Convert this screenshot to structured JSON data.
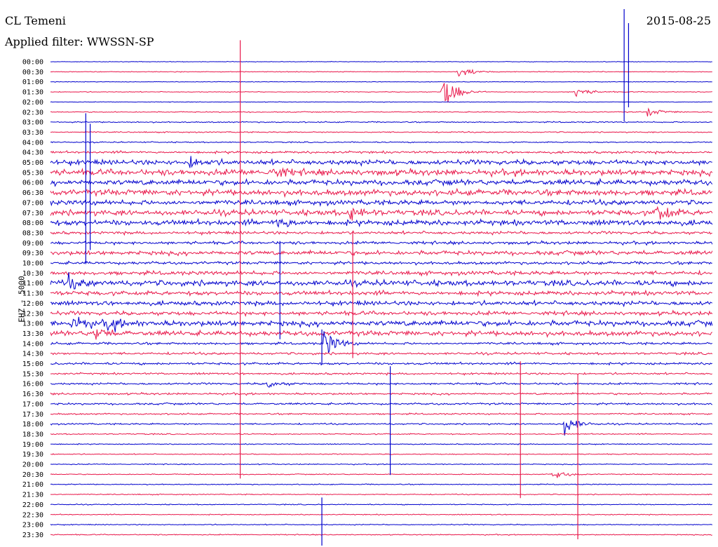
{
  "header": {
    "station": "CL Temeni",
    "filter_label": "Applied filter: WWSSN-SP",
    "date": "2015-08-25"
  },
  "channel_label": "EHZ - 5000",
  "colors": {
    "blue": "#0000cc",
    "red": "#e8174a",
    "background": "#ffffff"
  },
  "chart_data": {
    "type": "line",
    "title": "",
    "xlabel": "",
    "ylabel": "",
    "rows": [
      "00:00",
      "00:30",
      "01:00",
      "01:30",
      "02:00",
      "02:30",
      "03:00",
      "03:30",
      "04:00",
      "04:30",
      "05:00",
      "05:30",
      "06:00",
      "06:30",
      "07:00",
      "07:30",
      "08:00",
      "08:30",
      "09:00",
      "09:30",
      "10:00",
      "10:30",
      "11:00",
      "11:30",
      "12:00",
      "12:30",
      "13:00",
      "13:30",
      "14:00",
      "14:30",
      "15:00",
      "15:30",
      "16:00",
      "16:30",
      "17:00",
      "17:30",
      "18:00",
      "18:30",
      "19:00",
      "19:30",
      "20:00",
      "20:30",
      "21:00",
      "21:30",
      "22:00",
      "22:30",
      "23:00",
      "23:30"
    ],
    "row_colors": [
      "blue",
      "red",
      "blue",
      "red",
      "blue",
      "red",
      "blue",
      "red",
      "blue",
      "red",
      "blue",
      "red",
      "blue",
      "red",
      "blue",
      "red",
      "blue",
      "red",
      "blue",
      "red",
      "blue",
      "red",
      "blue",
      "red",
      "blue",
      "red",
      "blue",
      "red",
      "blue",
      "red",
      "blue",
      "red",
      "blue",
      "red",
      "blue",
      "red",
      "blue",
      "red",
      "blue",
      "red",
      "blue",
      "red",
      "blue",
      "red",
      "blue",
      "red",
      "blue",
      "red"
    ],
    "row_noise_level": [
      0.3,
      0.4,
      0.3,
      0.4,
      0.3,
      0.5,
      0.6,
      0.6,
      0.6,
      1.2,
      2.5,
      3.0,
      2.8,
      3.0,
      2.5,
      2.8,
      2.8,
      1.5,
      1.5,
      2.2,
      1.5,
      2.0,
      2.8,
      2.2,
      2.2,
      2.0,
      2.8,
      2.5,
      1.2,
      1.2,
      1.2,
      1.0,
      1.0,
      1.0,
      1.0,
      0.8,
      0.8,
      0.6,
      0.5,
      0.5,
      0.5,
      0.5,
      0.5,
      0.5,
      0.5,
      0.5,
      0.5,
      0.5
    ],
    "events": [
      {
        "row": "00:30",
        "t_min": 18.5,
        "amplitude": 8
      },
      {
        "row": "01:30",
        "t_min": 17.8,
        "amplitude": 28
      },
      {
        "row": "01:30",
        "t_min": 23.8,
        "amplitude": 8
      },
      {
        "row": "02:30",
        "t_min": 27.1,
        "amplitude": 6
      },
      {
        "row": "05:00",
        "t_min": 6.2,
        "amplitude": 8
      },
      {
        "row": "05:30",
        "t_min": 10.0,
        "amplitude": 8
      },
      {
        "row": "07:30",
        "t_min": 13.6,
        "amplitude": 9
      },
      {
        "row": "07:30",
        "t_min": 27.5,
        "amplitude": 12
      },
      {
        "row": "08:00",
        "t_min": 10.3,
        "amplitude": 9
      },
      {
        "row": "11:00",
        "t_min": 0.8,
        "amplitude": 8
      },
      {
        "row": "13:00",
        "t_min": 1.0,
        "amplitude": 10
      },
      {
        "row": "13:00",
        "t_min": 2.6,
        "amplitude": 9
      },
      {
        "row": "13:30",
        "t_min": 2.0,
        "amplitude": 8
      },
      {
        "row": "14:00",
        "t_min": 12.4,
        "amplitude": 18
      },
      {
        "row": "16:00",
        "t_min": 9.8,
        "amplitude": 6
      },
      {
        "row": "18:00",
        "t_min": 23.3,
        "amplitude": 14
      },
      {
        "row": "20:30",
        "t_min": 22.8,
        "amplitude": 6
      }
    ],
    "spikes": [
      {
        "row": "00:00",
        "t_min": 26.0,
        "up": 75,
        "down": 85
      },
      {
        "row": "00:00",
        "t_min": 26.2,
        "up": 55,
        "down": 65
      },
      {
        "row": "00:30",
        "t_min": 8.6,
        "up": 45,
        "down": 580
      },
      {
        "row": "05:00",
        "t_min": 1.6,
        "up": 70,
        "down": 145
      },
      {
        "row": "05:00",
        "t_min": 1.8,
        "up": 55,
        "down": 125
      },
      {
        "row": "09:30",
        "t_min": 13.7,
        "up": 30,
        "down": 150
      },
      {
        "row": "11:00",
        "t_min": 10.4,
        "up": 60,
        "down": 80
      },
      {
        "row": "14:00",
        "t_min": 12.3,
        "up": 20,
        "down": 30
      },
      {
        "row": "16:00",
        "t_min": 15.4,
        "up": 25,
        "down": 130
      },
      {
        "row": "17:30",
        "t_min": 21.3,
        "up": 75,
        "down": 120
      },
      {
        "row": "18:30",
        "t_min": 23.9,
        "up": 85,
        "down": 150
      },
      {
        "row": "22:00",
        "t_min": 12.3,
        "up": 10,
        "down": 60
      }
    ]
  }
}
